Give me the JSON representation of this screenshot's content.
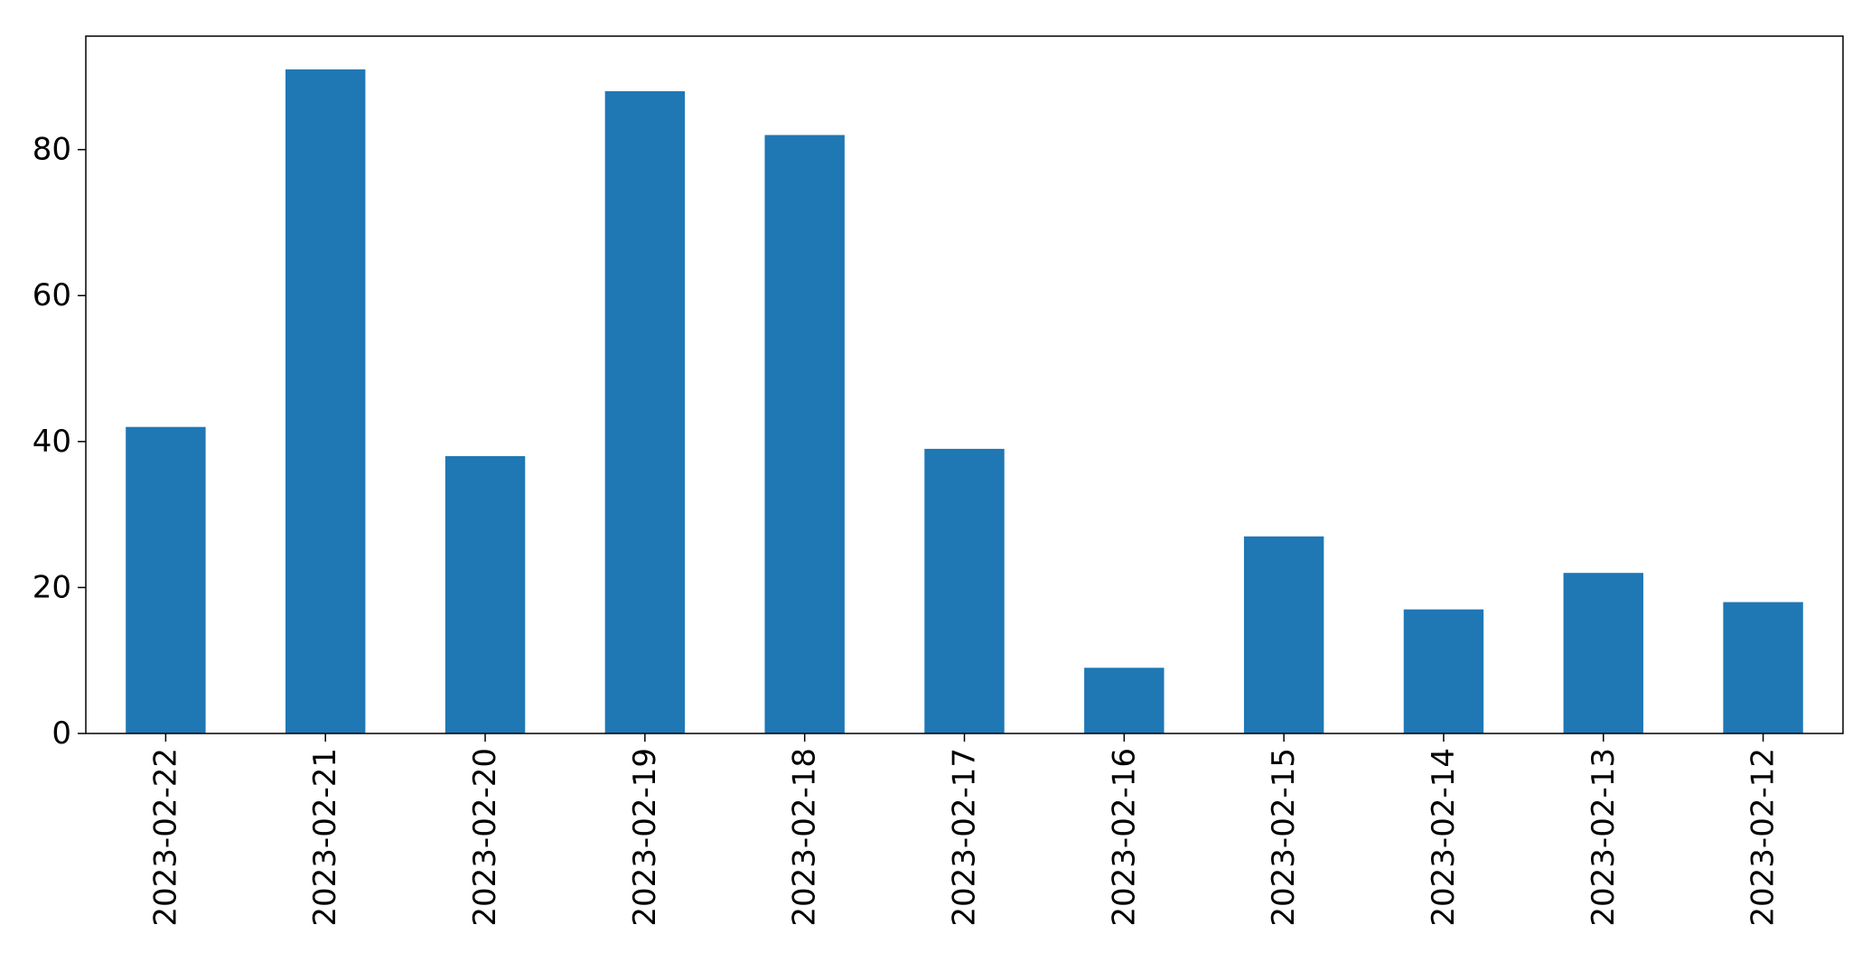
{
  "chart_data": {
    "type": "bar",
    "title": "",
    "xlabel": "",
    "ylabel": "",
    "categories": [
      "2023-02-22",
      "2023-02-21",
      "2023-02-20",
      "2023-02-19",
      "2023-02-18",
      "2023-02-17",
      "2023-02-16",
      "2023-02-15",
      "2023-02-14",
      "2023-02-13",
      "2023-02-12"
    ],
    "values": [
      42,
      91,
      38,
      88,
      82,
      39,
      9,
      27,
      17,
      22,
      18
    ],
    "ylim": [
      0,
      95.55
    ],
    "yticks": [
      0,
      20,
      40,
      60,
      80
    ],
    "grid": false,
    "legend": "none",
    "bar_color": "#1f77b4"
  }
}
